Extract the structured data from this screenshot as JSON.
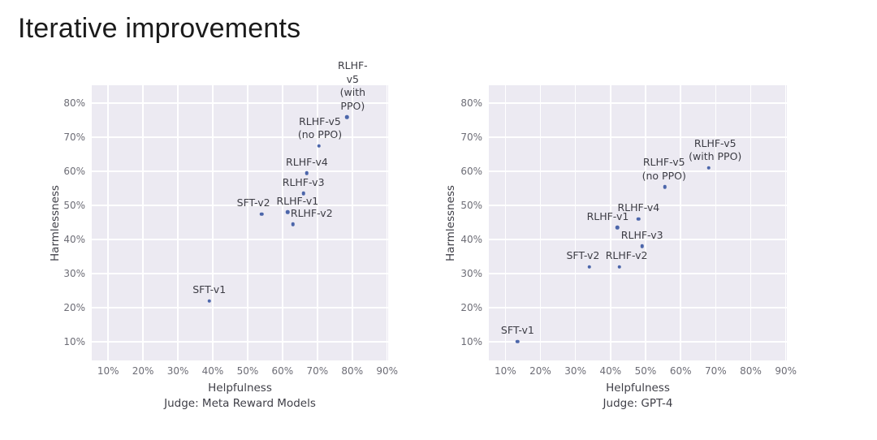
{
  "slide": {
    "title": "Iterative improvements"
  },
  "colors": {
    "background": "#ffffff",
    "title_text": "#1b1b1b",
    "plot_bg": "#eceaf2",
    "grid": "#ffffff",
    "point": "#4c66aa",
    "tick_text": "#6d6d76",
    "axis_text": "#3f3f47",
    "annotation_text": "#3c3c44"
  },
  "chart_data": [
    {
      "type": "scatter",
      "title": "",
      "xlabel": "Helpfulness",
      "ylabel": "Harmlessness",
      "subtitle": "Judge: Meta Reward Models",
      "xlim": [
        5.3,
        90.3
      ],
      "ylim": [
        4.5,
        85.3
      ],
      "xticks": [
        10,
        20,
        30,
        40,
        50,
        60,
        70,
        80,
        90
      ],
      "yticks": [
        10,
        20,
        30,
        40,
        50,
        60,
        70,
        80
      ],
      "tick_suffix": "%",
      "grid": true,
      "legend": "none",
      "points": [
        {
          "name": "SFT-v1",
          "x": 39,
          "y": 22,
          "label_lines": [
            "SFT-v1"
          ],
          "label_dx": 0
        },
        {
          "name": "SFT-v2",
          "x": 54,
          "y": 47.5,
          "label_lines": [
            "SFT-v2"
          ],
          "label_dx": -10
        },
        {
          "name": "RLHF-v1",
          "x": 61.5,
          "y": 48,
          "label_lines": [
            "RLHF-v1"
          ],
          "label_dx": 12
        },
        {
          "name": "RLHF-v2",
          "x": 63,
          "y": 44.5,
          "label_lines": [
            "RLHF-v2"
          ],
          "label_dx": 23
        },
        {
          "name": "RLHF-v3",
          "x": 66,
          "y": 53.5,
          "label_lines": [
            "RLHF-v3"
          ],
          "label_dx": 0
        },
        {
          "name": "RLHF-v4",
          "x": 67,
          "y": 59.5,
          "label_lines": [
            "RLHF-v4"
          ],
          "label_dx": 0
        },
        {
          "name": "RLHF-v5 (no PPO)",
          "x": 70.5,
          "y": 67.5,
          "label_lines": [
            "RLHF-v5",
            "(no PPO)"
          ],
          "label_dx": 1
        },
        {
          "name": "RLHF-v5 (with PPO)",
          "x": 78.5,
          "y": 76,
          "label_lines": [
            "RLHF-v5",
            "(with PPO)"
          ],
          "label_dx": 7
        }
      ]
    },
    {
      "type": "scatter",
      "title": "",
      "xlabel": "Helpfulness",
      "ylabel": "Harmlessness",
      "subtitle": "Judge: GPT-4",
      "xlim": [
        5.3,
        90.3
      ],
      "ylim": [
        4.5,
        85.3
      ],
      "xticks": [
        10,
        20,
        30,
        40,
        50,
        60,
        70,
        80,
        90
      ],
      "yticks": [
        10,
        20,
        30,
        40,
        50,
        60,
        70,
        80
      ],
      "tick_suffix": "%",
      "grid": true,
      "legend": "none",
      "points": [
        {
          "name": "SFT-v1",
          "x": 13.5,
          "y": 10,
          "label_lines": [
            "SFT-v1"
          ],
          "label_dx": 0
        },
        {
          "name": "SFT-v2",
          "x": 34,
          "y": 32,
          "label_lines": [
            "SFT-v2"
          ],
          "label_dx": -8
        },
        {
          "name": "RLHF-v2",
          "x": 42.5,
          "y": 32,
          "label_lines": [
            "RLHF-v2"
          ],
          "label_dx": 9
        },
        {
          "name": "RLHF-v1",
          "x": 42,
          "y": 43.5,
          "label_lines": [
            "RLHF-v1"
          ],
          "label_dx": -12
        },
        {
          "name": "RLHF-v4",
          "x": 48,
          "y": 46,
          "label_lines": [
            "RLHF-v4"
          ],
          "label_dx": 0
        },
        {
          "name": "RLHF-v3",
          "x": 49,
          "y": 38,
          "label_lines": [
            "RLHF-v3"
          ],
          "label_dx": 0
        },
        {
          "name": "RLHF-v5 (no PPO)",
          "x": 55.5,
          "y": 55.5,
          "label_lines": [
            "RLHF-v5",
            "(no PPO)"
          ],
          "label_dx": -1
        },
        {
          "name": "RLHF-v5 (with PPO)",
          "x": 68,
          "y": 61,
          "label_lines": [
            "RLHF-v5",
            "(with PPO)"
          ],
          "label_dx": 8
        }
      ]
    }
  ]
}
